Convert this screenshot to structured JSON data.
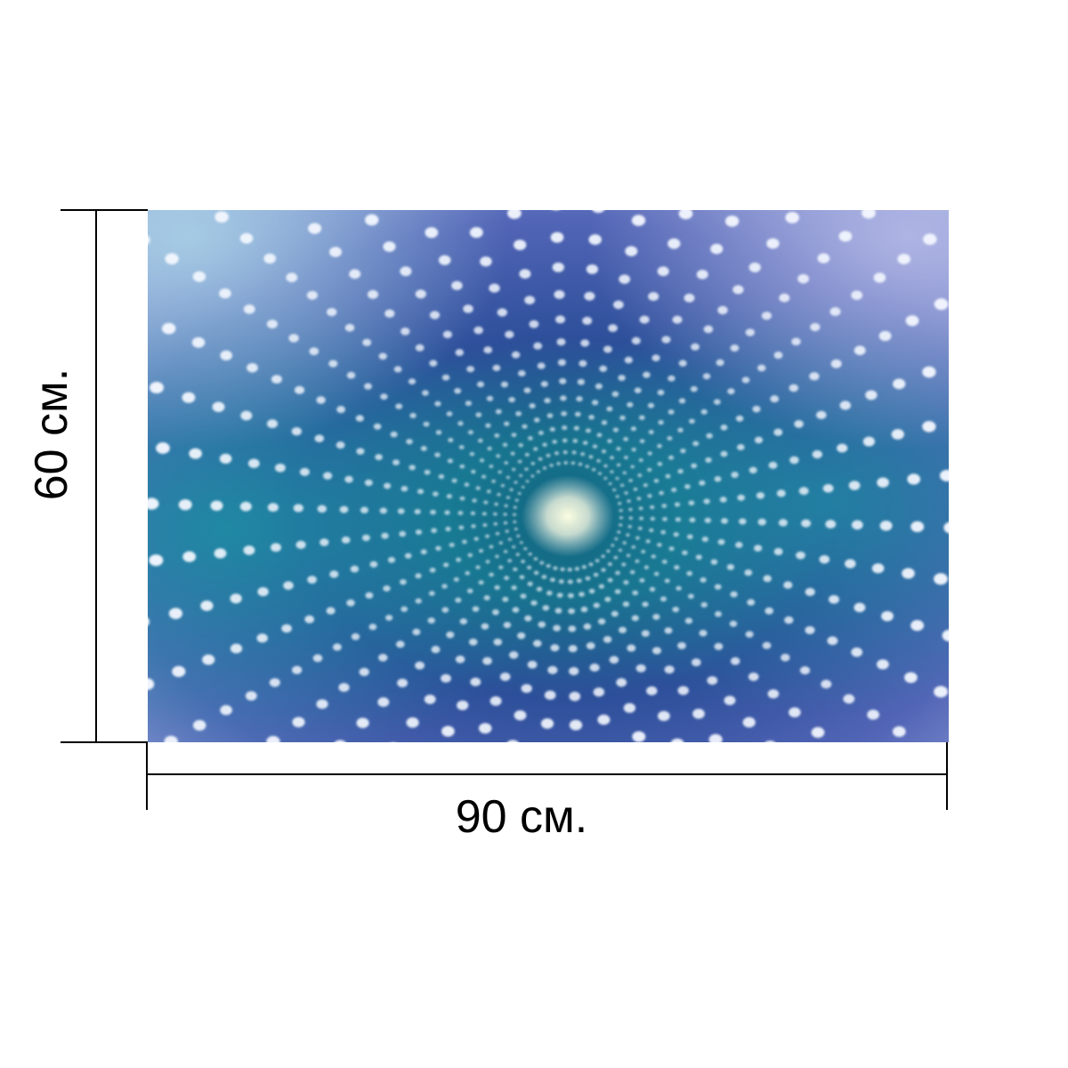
{
  "dimensions": {
    "height_label": "60 см.",
    "width_label": "90 см."
  },
  "photo": {
    "description_icon": "led-infinity-tunnel-photo",
    "colors": {
      "deep_blue": "#2b3c8a",
      "teal": "#1f7e95",
      "lilac": "#9aa6d8",
      "light": "#f4f8ff"
    }
  }
}
